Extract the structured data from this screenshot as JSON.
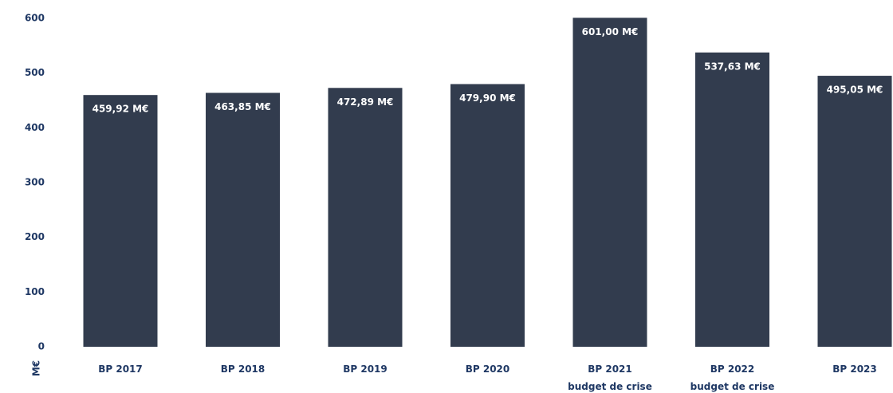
{
  "chart_data": {
    "type": "bar",
    "categories": [
      "BP 2017",
      "BP 2018",
      "BP 2019",
      "BP 2020",
      "BP 2021\nbudget de crise",
      "BP 2022\nbudget de crise",
      "BP 2023"
    ],
    "values": [
      459.92,
      463.85,
      472.89,
      479.9,
      601.0,
      537.63,
      495.05
    ],
    "value_labels": [
      "459,92 M€",
      "463,85 M€",
      "472,89 M€",
      "479,90 M€",
      "601,00 M€",
      "537,63 M€",
      "495,05 M€"
    ],
    "color": "#323c4e",
    "ylabel": "M€",
    "ylim": [
      0,
      600
    ],
    "yticks": [
      0,
      100,
      200,
      300,
      400,
      500,
      600
    ],
    "grid": false
  }
}
